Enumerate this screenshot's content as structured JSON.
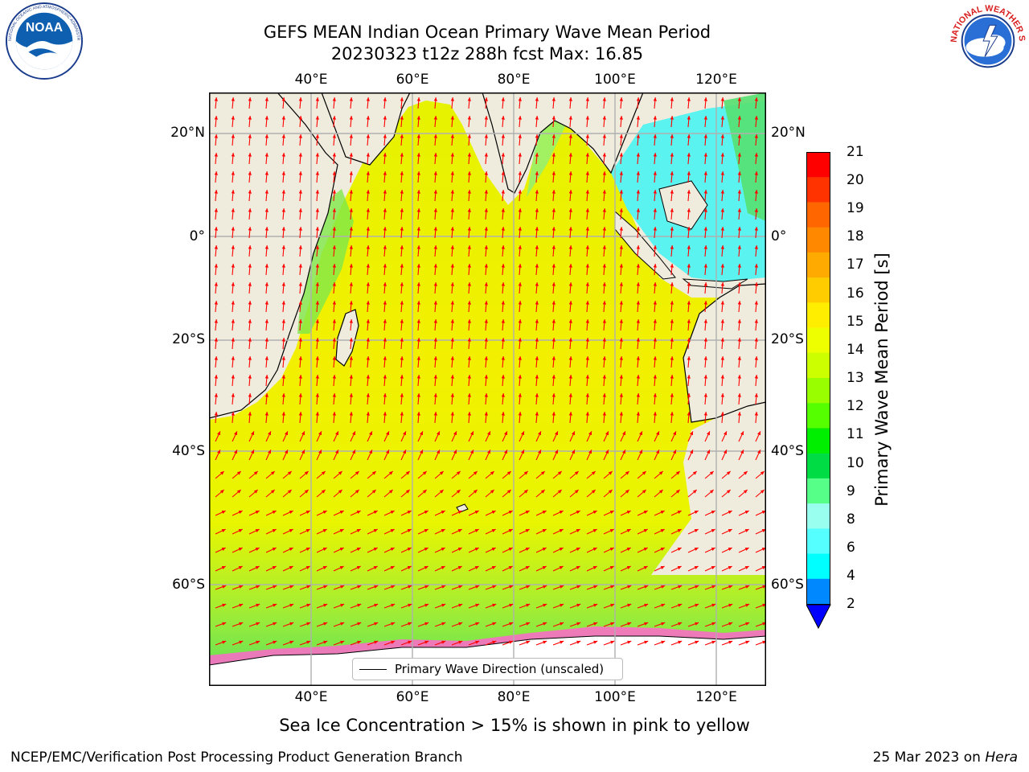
{
  "title": {
    "line1": "GEFS MEAN Indian Ocean Primary Wave Mean Period",
    "line2": "20230323 t12z 288h fcst   Max: 16.85"
  },
  "logos": {
    "noaa": {
      "text": "NOAA",
      "ring_text": "NATIONAL OCEANIC AND ATMOSPHERIC ADMINISTRATION · U.S. DEPARTMENT OF COMMERCE"
    },
    "nws": {
      "ring_text": "NATIONAL WEATHER SERVICE"
    }
  },
  "map": {
    "lon_ticks": [
      "40°E",
      "60°E",
      "80°E",
      "100°E",
      "120°E"
    ],
    "lat_ticks_left": [
      "20°N",
      "0°",
      "20°S",
      "40°S",
      "60°S"
    ],
    "lat_ticks_right": [
      "20°N",
      "0°",
      "20°S",
      "40°S",
      "60°S"
    ],
    "extent": {
      "lon_min": 20,
      "lon_max": 130,
      "lat_min": -75,
      "lat_max": 28
    },
    "land_color": "#efecdd",
    "arrow_color": "#ff0000",
    "legend_label": "Primary Wave Direction (unscaled)"
  },
  "colorbar": {
    "label": "Primary Wave Mean Period [s]",
    "ticks": [
      "21",
      "20",
      "19",
      "18",
      "17",
      "16",
      "15",
      "14",
      "13",
      "12",
      "11",
      "10",
      "9",
      "8",
      "6",
      "4",
      "2"
    ],
    "colors": [
      "#ff0000",
      "#ff3300",
      "#ff6600",
      "#ff8800",
      "#ffaa00",
      "#ffcc00",
      "#ffee00",
      "#eeff00",
      "#ccff00",
      "#99ff00",
      "#55ff00",
      "#00ee00",
      "#00dd44",
      "#55ff88",
      "#99ffee",
      "#55ffff",
      "#00ffff",
      "#0088ff"
    ],
    "extend_color": "#0000ff"
  },
  "note": "Sea Ice Concentration > 15% is shown in pink to yellow",
  "footer": {
    "left": "NCEP/EMC/Verification Post Processing Product Generation Branch",
    "right_date": "25 Mar 2023 on ",
    "right_host": "Hera"
  }
}
